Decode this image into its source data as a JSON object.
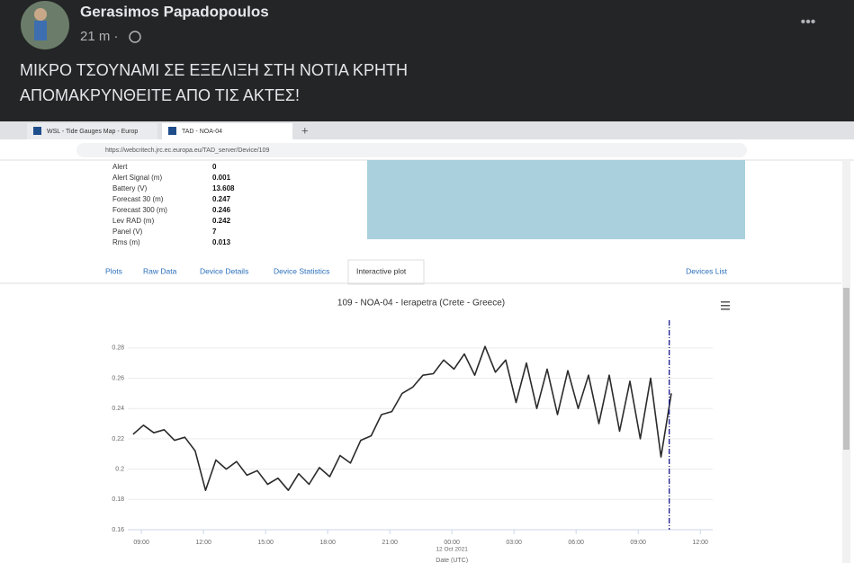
{
  "post": {
    "author": "Gerasimos Papadopoulos",
    "time": "21 m ·",
    "more": "•••",
    "text_lines": [
      "ΜΙΚΡΟ ΤΣΟΥΝΑΜΙ ΣΕ ΕΞΕΛΙΞΗ ΣΤΗ ΝΟΤΙΑ ΚΡΗΤΗ",
      "ΑΠΟΜΑΚΡΥΝΘΕΙΤΕ ΑΠΟ ΤΙΣ ΑΚΤΕΣ!"
    ]
  },
  "browser": {
    "tabs": [
      "WSL - Tide Gauges Map - Europ",
      "TAD - NOA-04"
    ],
    "url": "https://webcritech.jrc.ec.europa.eu/TAD_server/Device/109"
  },
  "device_table": {
    "rows": [
      [
        "Alert",
        "0"
      ],
      [
        "Alert Signal (m)",
        "0.001"
      ],
      [
        "Battery (V)",
        "13.608"
      ],
      [
        "Forecast 30 (m)",
        "0.247"
      ],
      [
        "Forecast 300 (m)",
        "0.246"
      ],
      [
        "Lev RAD (m)",
        "0.242"
      ],
      [
        "Panel (V)",
        "7"
      ],
      [
        "Rms (m)",
        "0.013"
      ]
    ]
  },
  "nav": {
    "tabs": [
      "Plots",
      "Raw Data",
      "Device Details",
      "Device Statistics",
      "Interactive plot"
    ],
    "active": 4,
    "right": "Devices List"
  },
  "chart_data": {
    "type": "line",
    "title": "109 - NOA-04 - Ierapetra (Crete - Greece)",
    "x_label": "Date (UTC)",
    "x_annotation": {
      "x": 24,
      "text": "12 Oct 2021"
    },
    "color": "#2b2b2b",
    "grid": true,
    "x": [
      8.6,
      9.1,
      9.6,
      10.1,
      10.6,
      11.1,
      11.6,
      12.1,
      12.6,
      13.1,
      13.6,
      14.1,
      14.6,
      15.1,
      15.6,
      16.1,
      16.6,
      17.1,
      17.6,
      18.1,
      18.6,
      19.1,
      19.6,
      20.1,
      20.6,
      21.1,
      21.6,
      22.1,
      22.6,
      23.1,
      23.6,
      24.1,
      24.6,
      25.1,
      25.6,
      26.1,
      26.6,
      27.1,
      27.6,
      28.1,
      28.6,
      29.1,
      29.6,
      30.1,
      30.6,
      31.1,
      31.6,
      32.1,
      32.6,
      33.1,
      33.6,
      34.1,
      34.6
    ],
    "values": [
      0.223,
      0.229,
      0.224,
      0.226,
      0.219,
      0.221,
      0.212,
      0.186,
      0.206,
      0.2,
      0.205,
      0.196,
      0.199,
      0.19,
      0.194,
      0.186,
      0.197,
      0.19,
      0.201,
      0.195,
      0.209,
      0.204,
      0.219,
      0.222,
      0.236,
      0.238,
      0.25,
      0.254,
      0.262,
      0.263,
      0.272,
      0.266,
      0.276,
      0.262,
      0.281,
      0.264,
      0.272,
      0.244,
      0.27,
      0.24,
      0.266,
      0.236,
      0.265,
      0.24,
      0.262,
      0.23,
      0.262,
      0.225,
      0.258,
      0.22,
      0.26,
      0.208,
      0.25
    ],
    "vline": {
      "x": 34.5,
      "color": "#1a1a8c"
    },
    "xlim": [
      7.3,
      36.6
    ],
    "ylim": [
      0.16,
      0.29
    ],
    "xticks": [
      {
        "value": 9,
        "label": "09:00"
      },
      {
        "value": 12,
        "label": "12:00"
      },
      {
        "value": 15,
        "label": "15:00"
      },
      {
        "value": 18,
        "label": "18:00"
      },
      {
        "value": 21,
        "label": "21:00"
      },
      {
        "value": 24,
        "label": "00:00"
      },
      {
        "value": 27,
        "label": "03:00"
      },
      {
        "value": 30,
        "label": "06:00"
      },
      {
        "value": 33,
        "label": "09:00"
      },
      {
        "value": 36,
        "label": "12:00"
      }
    ],
    "yticks": [
      0.16,
      0.18,
      0.2,
      0.22,
      0.24,
      0.26,
      0.28
    ]
  }
}
